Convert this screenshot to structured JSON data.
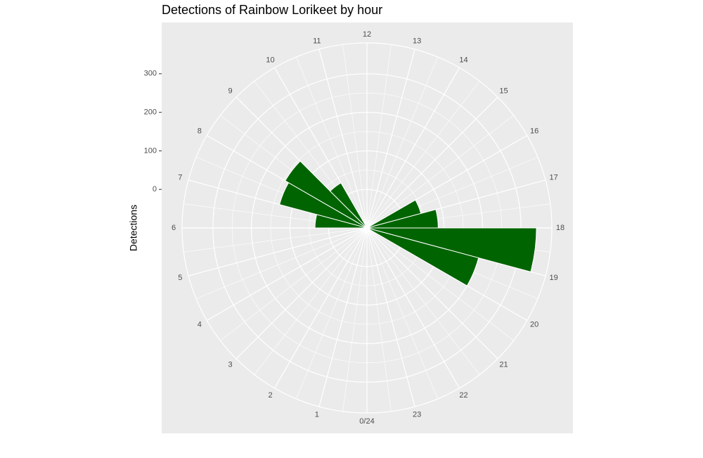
{
  "chart_data": {
    "type": "bar",
    "coord": "polar",
    "title": "Detections of Rainbow Lorikeet by hour",
    "xlabel": "",
    "ylabel": "Detections",
    "x": [
      0,
      1,
      2,
      3,
      4,
      5,
      6,
      7,
      8,
      9,
      10,
      11,
      12,
      13,
      14,
      15,
      16,
      17,
      18,
      19,
      20,
      21,
      22,
      23
    ],
    "values": [
      0,
      0,
      0,
      0,
      0,
      0,
      35,
      135,
      145,
      35,
      0,
      0,
      0,
      0,
      0,
      0,
      45,
      85,
      340,
      200,
      0,
      0,
      0,
      0
    ],
    "y_range": [
      -100,
      380
    ],
    "y_ticks": [
      0,
      100,
      200,
      300
    ],
    "angle_tick_labels": [
      "0/24",
      "1",
      "2",
      "3",
      "4",
      "5",
      "6",
      "7",
      "8",
      "9",
      "10",
      "11",
      "12",
      "13",
      "14",
      "15",
      "16",
      "17",
      "18",
      "19",
      "20",
      "21",
      "22",
      "23"
    ],
    "bar_color": "#006400",
    "panel_background": "#ebebeb",
    "grid_color": "#ffffff",
    "legend": "none"
  }
}
